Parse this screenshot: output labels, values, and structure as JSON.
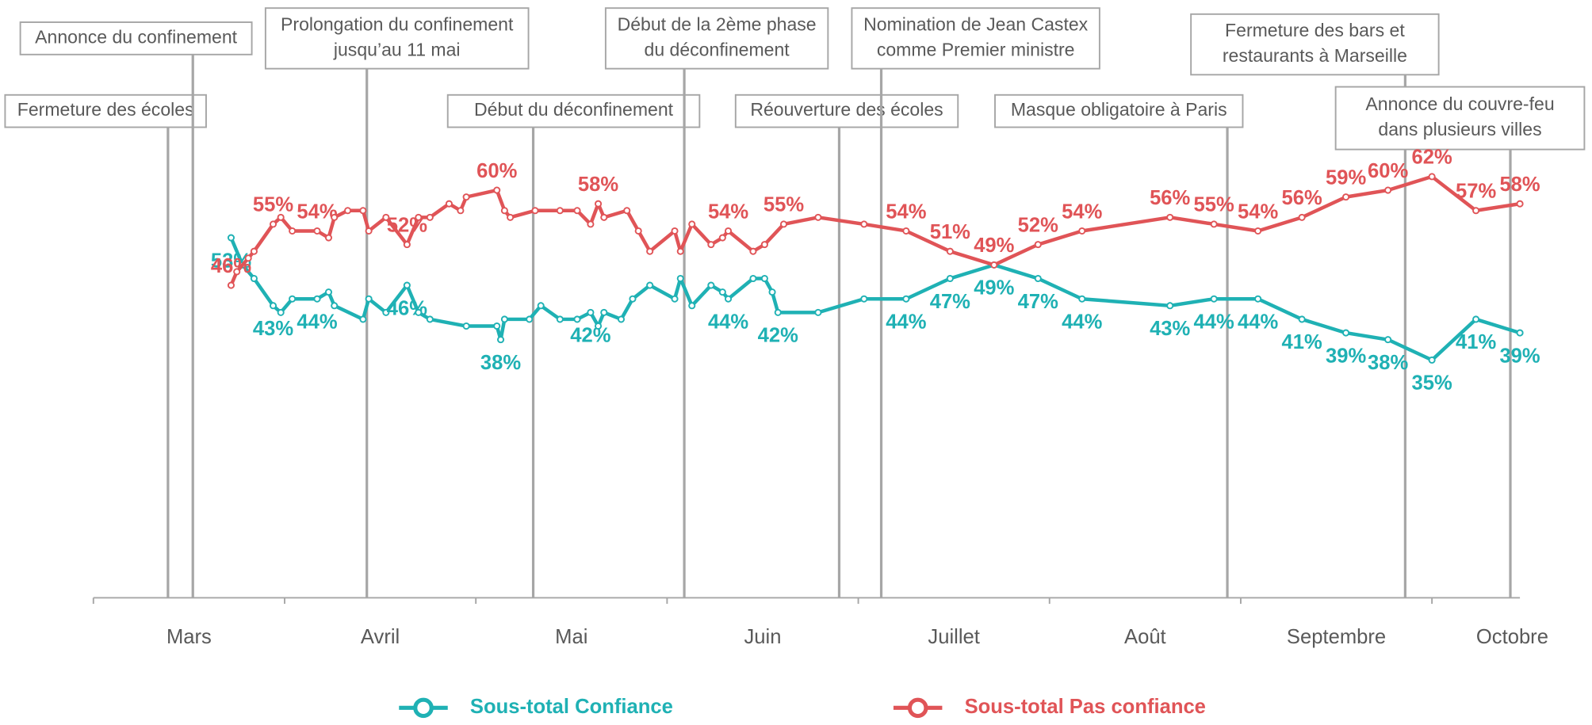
{
  "chart_data": {
    "type": "line",
    "xticks": [
      {
        "value": 0.5,
        "label": "Mars"
      },
      {
        "value": 1.5,
        "label": "Avril"
      },
      {
        "value": 2.5,
        "label": "Mai"
      },
      {
        "value": 3.5,
        "label": "Juin"
      },
      {
        "value": 4.5,
        "label": "Juillet"
      },
      {
        "value": 5.5,
        "label": "Août"
      },
      {
        "value": 6.5,
        "label": "Septembre"
      },
      {
        "value": 7.42,
        "label": "Octobre"
      }
    ],
    "xminor": [
      0,
      1,
      2,
      3,
      4,
      5,
      6,
      7
    ],
    "xlim": [
      0,
      7.46
    ],
    "ylim": [
      0,
      88
    ],
    "legend": "bottom",
    "series": [
      {
        "name": "Sous-total Confiance",
        "color": "#1fb1b4",
        "x": [
          0.72,
          0.78,
          0.84,
          0.94,
          0.98,
          1.04,
          1.17,
          1.23,
          1.26,
          1.41,
          1.44,
          1.53,
          1.64,
          1.7,
          1.76,
          1.95,
          2.11,
          2.13,
          2.15,
          2.28,
          2.34,
          2.44,
          2.53,
          2.6,
          2.64,
          2.67,
          2.76,
          2.82,
          2.91,
          3.04,
          3.07,
          3.13,
          3.23,
          3.29,
          3.32,
          3.45,
          3.51,
          3.55,
          3.58,
          3.79,
          4.03,
          4.25,
          4.48,
          4.71,
          4.94,
          5.17,
          5.63,
          5.86,
          6.09,
          6.32,
          6.55,
          6.77,
          7.0,
          7.23,
          7.46
        ],
        "values": [
          53,
          49,
          47,
          43,
          42,
          44,
          44,
          45,
          43,
          41,
          44,
          42,
          46,
          42,
          41,
          40,
          40,
          38,
          41,
          41,
          43,
          41,
          41,
          42,
          40,
          42,
          41,
          44,
          46,
          44,
          47,
          43,
          46,
          45,
          44,
          47,
          47,
          45,
          42,
          42,
          44,
          44,
          47,
          49,
          47,
          44,
          43,
          44,
          44,
          41,
          39,
          38,
          35,
          41,
          39
        ],
        "value_labels": [
          "53%",
          null,
          null,
          "43%",
          null,
          null,
          "44%",
          null,
          null,
          null,
          null,
          null,
          "46%",
          null,
          null,
          null,
          null,
          "38%",
          null,
          null,
          null,
          null,
          null,
          "42%",
          null,
          null,
          null,
          null,
          null,
          null,
          null,
          null,
          null,
          null,
          "44%",
          null,
          null,
          null,
          "42%",
          null,
          null,
          "44%",
          "47%",
          "49%",
          "47%",
          "44%",
          "43%",
          "44%",
          "44%",
          "41%",
          "39%",
          "38%",
          "35%",
          "41%",
          "39%"
        ]
      },
      {
        "name": "Sous-total Pas confiance",
        "color": "#e05457",
        "x": [
          0.72,
          0.75,
          0.81,
          0.84,
          0.94,
          0.98,
          1.04,
          1.17,
          1.23,
          1.26,
          1.33,
          1.41,
          1.44,
          1.53,
          1.64,
          1.7,
          1.76,
          1.86,
          1.92,
          1.95,
          2.11,
          2.15,
          2.18,
          2.31,
          2.44,
          2.53,
          2.6,
          2.64,
          2.67,
          2.79,
          2.85,
          2.91,
          3.04,
          3.07,
          3.13,
          3.23,
          3.29,
          3.32,
          3.45,
          3.51,
          3.61,
          3.79,
          4.03,
          4.25,
          4.48,
          4.71,
          4.94,
          5.17,
          5.63,
          5.86,
          6.09,
          6.32,
          6.55,
          6.77,
          7.0,
          7.23,
          7.46
        ],
        "values": [
          46,
          48,
          50,
          51,
          55,
          56,
          54,
          54,
          53,
          56,
          57,
          57,
          54,
          56,
          52,
          56,
          56,
          58,
          57,
          59,
          60,
          57,
          56,
          57,
          57,
          57,
          55,
          58,
          56,
          57,
          54,
          51,
          54,
          51,
          55,
          52,
          53,
          54,
          51,
          52,
          55,
          56,
          55,
          54,
          51,
          49,
          52,
          54,
          56,
          55,
          54,
          56,
          59,
          60,
          62,
          57,
          58
        ],
        "value_labels": [
          "46%",
          null,
          null,
          null,
          "55%",
          null,
          null,
          "54%",
          null,
          null,
          null,
          null,
          null,
          null,
          "52%",
          null,
          null,
          null,
          null,
          null,
          "60%",
          null,
          null,
          null,
          null,
          null,
          null,
          "58%",
          null,
          null,
          null,
          null,
          null,
          null,
          null,
          null,
          null,
          "54%",
          null,
          null,
          "55%",
          null,
          null,
          "54%",
          "51%",
          "49%",
          "52%",
          "54%",
          "56%",
          "55%",
          "54%",
          "56%",
          "59%",
          "60%",
          "62%",
          "57%",
          "58%"
        ]
      }
    ],
    "annotations": [
      {
        "text": [
          "Fermeture des écoles"
        ],
        "x": 0.39
      },
      {
        "text": [
          "Annonce du confinement"
        ],
        "x": 0.52
      },
      {
        "text": [
          "Prolongation du confinement",
          "jusqu’au 11 mai"
        ],
        "x": 1.43
      },
      {
        "text": [
          "Début du déconfinement"
        ],
        "x": 2.3
      },
      {
        "text": [
          "Début de la 2ème phase",
          "du déconfinement"
        ],
        "x": 3.09
      },
      {
        "text": [
          "Réouverture des écoles"
        ],
        "x": 3.9
      },
      {
        "text": [
          "Nomination de Jean Castex",
          "comme Premier ministre"
        ],
        "x": 4.12
      },
      {
        "text": [
          "Masque obligatoire à Paris"
        ],
        "x": 5.93
      },
      {
        "text": [
          "Fermeture des bars et",
          "restaurants à Marseille"
        ],
        "x": 6.86
      },
      {
        "text": [
          "Annonce du couvre-feu",
          "dans plusieurs villes"
        ],
        "x": 7.41
      }
    ]
  }
}
